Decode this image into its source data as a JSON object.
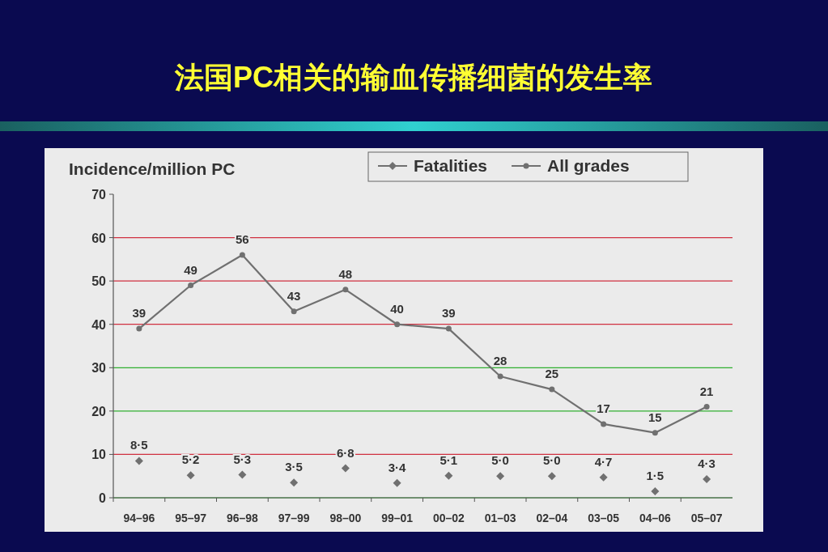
{
  "chart_data": {
    "type": "line",
    "title": "法国PC相关的输血传播细菌的发生率",
    "ylabel": "Incidence/million PC",
    "categories": [
      "94–96",
      "95–97",
      "96–98",
      "97–99",
      "98–00",
      "99–01",
      "00–02",
      "01–03",
      "02–04",
      "03–05",
      "04–06",
      "05–07"
    ],
    "ylim": [
      0,
      70
    ],
    "yticks": [
      0,
      10,
      20,
      30,
      40,
      50,
      60,
      70
    ],
    "grid": "y",
    "legend": "top right",
    "series": [
      {
        "name": "Fatalities",
        "type": "scatter",
        "marker": "diamond",
        "color": "#707070",
        "values": [
          8.5,
          5.2,
          5.3,
          3.5,
          6.8,
          3.4,
          5.1,
          5.0,
          5.0,
          4.7,
          1.5,
          4.3
        ],
        "value_labels": [
          "8·5",
          "5·2",
          "5·3",
          "3·5",
          "6·8",
          "3·4",
          "5·1",
          "5·0",
          "5·0",
          "4·7",
          "1·5",
          "4·3"
        ]
      },
      {
        "name": "All grades",
        "type": "line",
        "marker": "circle",
        "color": "#707070",
        "values": [
          39,
          49,
          56,
          43,
          48,
          40,
          39,
          28,
          25,
          17,
          15,
          21
        ],
        "value_labels": [
          "39",
          "49",
          "56",
          "43",
          "48",
          "40",
          "39",
          "28",
          "25",
          "17",
          "15",
          "21"
        ]
      }
    ]
  }
}
